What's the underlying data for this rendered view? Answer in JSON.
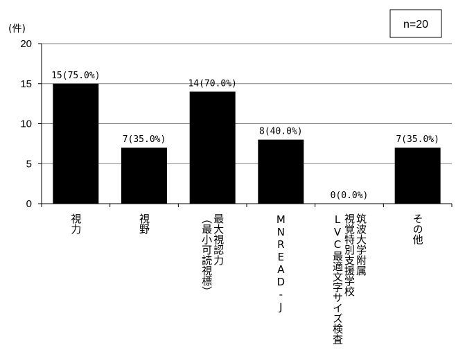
{
  "chart_data": {
    "type": "bar",
    "unit_label": "(件)",
    "sample_note": "n=20",
    "categories": [
      [
        "視力"
      ],
      [
        "視野"
      ],
      [
        "最大視認力",
        "（最小可読視標）"
      ],
      [
        "MNREAD-J"
      ],
      [
        "筑波大学附属",
        "視覚特別支援学校",
        "LVC最適文字サイズ検査"
      ],
      [
        "その他"
      ]
    ],
    "values": [
      15,
      7,
      14,
      8,
      0,
      7
    ],
    "data_labels": [
      "15(75.0%)",
      "7(35.0%)",
      "14(70.0%)",
      "8(40.0%)",
      "0(0.0%)",
      "7(35.0%)"
    ],
    "yticks": [
      "0",
      "5",
      "10",
      "15",
      "20"
    ],
    "ylim": [
      0,
      20
    ],
    "grid": true,
    "bar_color": "#000000",
    "grid_color": "#808080"
  }
}
